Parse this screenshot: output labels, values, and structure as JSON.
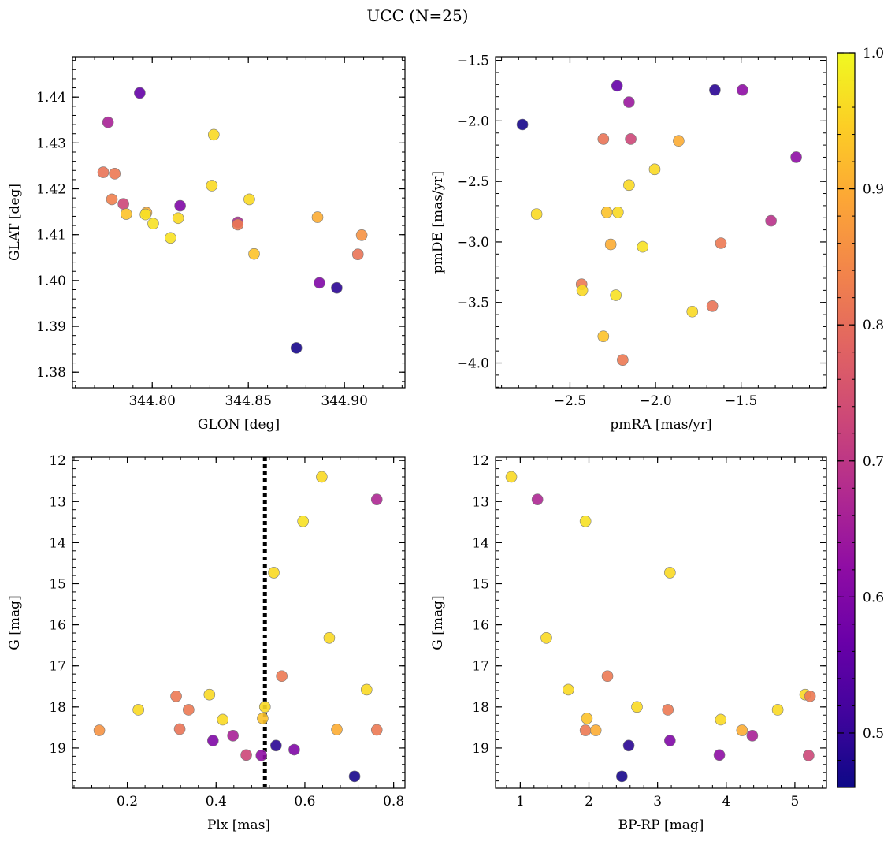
{
  "figure": {
    "title": "UCC (N=25)",
    "colormap": "plasma",
    "colorbar": {
      "range": [
        0.46,
        1.0
      ],
      "ticks": [
        0.5,
        0.6,
        0.7,
        0.8,
        0.9,
        1.0
      ],
      "tick_labels": [
        "0.5",
        "0.6",
        "0.7",
        "0.8",
        "0.9",
        "1.0"
      ]
    }
  },
  "chart_data": [
    {
      "id": "glon-glat",
      "type": "scatter",
      "xlabel": "GLON [deg]",
      "ylabel": "GLAT [deg]",
      "xlim": [
        344.7585,
        344.9315
      ],
      "ylim": [
        1.3766,
        1.4488
      ],
      "y_inverted": false,
      "xticks": [
        344.8,
        344.85,
        344.9
      ],
      "xtick_labels": [
        "344.80",
        "344.85",
        "344.90"
      ],
      "yticks": [
        1.38,
        1.39,
        1.4,
        1.41,
        1.42,
        1.43,
        1.44
      ],
      "ytick_labels": [
        "1.38",
        "1.39",
        "1.40",
        "1.41",
        "1.42",
        "1.43",
        "1.44"
      ],
      "points": [
        {
          "x": 344.7935,
          "y": 1.4409,
          "c": 0.56
        },
        {
          "x": 344.777,
          "y": 1.4345,
          "c": 0.66
        },
        {
          "x": 344.832,
          "y": 1.4318,
          "c": 0.96
        },
        {
          "x": 344.7745,
          "y": 1.4236,
          "c": 0.81
        },
        {
          "x": 344.7805,
          "y": 1.4233,
          "c": 0.82
        },
        {
          "x": 344.831,
          "y": 1.4207,
          "c": 0.96
        },
        {
          "x": 344.779,
          "y": 1.4177,
          "c": 0.83
        },
        {
          "x": 344.8505,
          "y": 1.4177,
          "c": 0.96
        },
        {
          "x": 344.785,
          "y": 1.4167,
          "c": 0.73
        },
        {
          "x": 344.8145,
          "y": 1.4163,
          "c": 0.6
        },
        {
          "x": 344.7865,
          "y": 1.4145,
          "c": 0.93
        },
        {
          "x": 344.797,
          "y": 1.4148,
          "c": 0.9
        },
        {
          "x": 344.7965,
          "y": 1.4144,
          "c": 0.97
        },
        {
          "x": 344.8135,
          "y": 1.4136,
          "c": 0.96
        },
        {
          "x": 344.886,
          "y": 1.4138,
          "c": 0.9
        },
        {
          "x": 344.8445,
          "y": 1.4127,
          "c": 0.67
        },
        {
          "x": 344.8445,
          "y": 1.4122,
          "c": 0.82
        },
        {
          "x": 344.8005,
          "y": 1.4124,
          "c": 0.97
        },
        {
          "x": 344.8095,
          "y": 1.4093,
          "c": 0.97
        },
        {
          "x": 344.909,
          "y": 1.4099,
          "c": 0.86
        },
        {
          "x": 344.853,
          "y": 1.4058,
          "c": 0.93
        },
        {
          "x": 344.907,
          "y": 1.4057,
          "c": 0.81
        },
        {
          "x": 344.887,
          "y": 1.3995,
          "c": 0.6
        },
        {
          "x": 344.896,
          "y": 1.3984,
          "c": 0.49
        },
        {
          "x": 344.875,
          "y": 1.3853,
          "c": 0.47
        }
      ]
    },
    {
      "id": "pmra-pmde",
      "type": "scatter",
      "xlabel": "pmRA [mas/yr]",
      "ylabel": "pmDE [mas/yr]",
      "xlim": [
        -2.935,
        -1.001
      ],
      "ylim": [
        -4.205,
        -1.47
      ],
      "y_inverted": false,
      "xticks": [
        -2.5,
        -2.0,
        -1.5
      ],
      "xtick_labels": [
        "−2.5",
        "−2.0",
        "−1.5"
      ],
      "yticks": [
        -4.0,
        -3.5,
        -3.0,
        -2.5,
        -2.0,
        -1.5
      ],
      "ytick_labels": [
        "−4.0",
        "−3.5",
        "−3.0",
        "−2.5",
        "−2.0",
        "−1.5"
      ],
      "points": [
        {
          "x": -2.225,
          "y": -1.71,
          "c": 0.56
        },
        {
          "x": -1.653,
          "y": -1.745,
          "c": 0.49
        },
        {
          "x": -1.492,
          "y": -1.745,
          "c": 0.62
        },
        {
          "x": -2.155,
          "y": -1.845,
          "c": 0.64
        },
        {
          "x": -2.778,
          "y": -2.03,
          "c": 0.47
        },
        {
          "x": -2.305,
          "y": -2.15,
          "c": 0.81
        },
        {
          "x": -2.145,
          "y": -2.15,
          "c": 0.73
        },
        {
          "x": -1.865,
          "y": -2.165,
          "c": 0.9
        },
        {
          "x": -1.178,
          "y": -2.3,
          "c": 0.62
        },
        {
          "x": -2.005,
          "y": -2.4,
          "c": 0.96
        },
        {
          "x": -2.155,
          "y": -2.53,
          "c": 0.96
        },
        {
          "x": -2.285,
          "y": -2.755,
          "c": 0.93
        },
        {
          "x": -2.22,
          "y": -2.755,
          "c": 0.96
        },
        {
          "x": -2.695,
          "y": -2.77,
          "c": 0.96
        },
        {
          "x": -1.325,
          "y": -2.825,
          "c": 0.69
        },
        {
          "x": -2.262,
          "y": -3.02,
          "c": 0.9
        },
        {
          "x": -1.618,
          "y": -3.01,
          "c": 0.82
        },
        {
          "x": -2.075,
          "y": -3.04,
          "c": 0.97
        },
        {
          "x": -2.432,
          "y": -3.35,
          "c": 0.82
        },
        {
          "x": -2.428,
          "y": -3.4,
          "c": 0.96
        },
        {
          "x": -2.232,
          "y": -3.44,
          "c": 0.97
        },
        {
          "x": -1.668,
          "y": -3.53,
          "c": 0.81
        },
        {
          "x": -1.785,
          "y": -3.575,
          "c": 0.96
        },
        {
          "x": -2.305,
          "y": -3.78,
          "c": 0.93
        },
        {
          "x": -2.192,
          "y": -3.975,
          "c": 0.82
        }
      ]
    },
    {
      "id": "plx-g",
      "type": "scatter",
      "xlabel": "Plx [mas]",
      "ylabel": "G [mag]",
      "xlim": [
        0.0765,
        0.8255
      ],
      "ylim": [
        11.92,
        19.98
      ],
      "y_inverted": true,
      "xticks": [
        0.2,
        0.4,
        0.6,
        0.8
      ],
      "xtick_labels": [
        "0.2",
        "0.4",
        "0.6",
        "0.8"
      ],
      "yticks": [
        12,
        13,
        14,
        15,
        16,
        17,
        18,
        19
      ],
      "ytick_labels": [
        "12",
        "13",
        "14",
        "15",
        "16",
        "17",
        "18",
        "19"
      ],
      "vline": {
        "x": 0.51,
        "style": "dotted"
      },
      "points": [
        {
          "x": 0.638,
          "y": 12.4,
          "c": 0.96
        },
        {
          "x": 0.762,
          "y": 12.95,
          "c": 0.67
        },
        {
          "x": 0.596,
          "y": 13.48,
          "c": 0.97
        },
        {
          "x": 0.53,
          "y": 14.73,
          "c": 0.96
        },
        {
          "x": 0.655,
          "y": 16.32,
          "c": 0.96
        },
        {
          "x": 0.548,
          "y": 17.25,
          "c": 0.82
        },
        {
          "x": 0.739,
          "y": 17.58,
          "c": 0.96
        },
        {
          "x": 0.385,
          "y": 17.7,
          "c": 0.96
        },
        {
          "x": 0.31,
          "y": 17.74,
          "c": 0.82
        },
        {
          "x": 0.225,
          "y": 18.07,
          "c": 0.96
        },
        {
          "x": 0.338,
          "y": 18.07,
          "c": 0.82
        },
        {
          "x": 0.51,
          "y": 18.0,
          "c": 0.96
        },
        {
          "x": 0.505,
          "y": 18.28,
          "c": 0.93
        },
        {
          "x": 0.415,
          "y": 18.31,
          "c": 0.96
        },
        {
          "x": 0.137,
          "y": 18.57,
          "c": 0.86
        },
        {
          "x": 0.318,
          "y": 18.54,
          "c": 0.81
        },
        {
          "x": 0.672,
          "y": 18.55,
          "c": 0.9
        },
        {
          "x": 0.762,
          "y": 18.56,
          "c": 0.82
        },
        {
          "x": 0.438,
          "y": 18.7,
          "c": 0.66
        },
        {
          "x": 0.393,
          "y": 18.82,
          "c": 0.6
        },
        {
          "x": 0.535,
          "y": 18.94,
          "c": 0.49
        },
        {
          "x": 0.576,
          "y": 19.04,
          "c": 0.6
        },
        {
          "x": 0.468,
          "y": 19.17,
          "c": 0.73
        },
        {
          "x": 0.502,
          "y": 19.18,
          "c": 0.62
        },
        {
          "x": 0.712,
          "y": 19.69,
          "c": 0.47
        }
      ]
    },
    {
      "id": "bprp-g",
      "type": "scatter",
      "xlabel": "BP-RP [mag]",
      "ylabel": "G [mag]",
      "xlim": [
        0.64,
        5.46
      ],
      "ylim": [
        11.92,
        19.98
      ],
      "y_inverted": true,
      "xticks": [
        1,
        2,
        3,
        4,
        5
      ],
      "xtick_labels": [
        "1",
        "2",
        "3",
        "4",
        "5"
      ],
      "yticks": [
        12,
        13,
        14,
        15,
        16,
        17,
        18,
        19
      ],
      "ytick_labels": [
        "12",
        "13",
        "14",
        "15",
        "16",
        "17",
        "18",
        "19"
      ],
      "points": [
        {
          "x": 0.87,
          "y": 12.4,
          "c": 0.96
        },
        {
          "x": 1.25,
          "y": 12.95,
          "c": 0.67
        },
        {
          "x": 1.95,
          "y": 13.48,
          "c": 0.97
        },
        {
          "x": 3.18,
          "y": 14.73,
          "c": 0.96
        },
        {
          "x": 1.38,
          "y": 16.32,
          "c": 0.96
        },
        {
          "x": 2.27,
          "y": 17.25,
          "c": 0.82
        },
        {
          "x": 1.7,
          "y": 17.58,
          "c": 0.96
        },
        {
          "x": 5.15,
          "y": 17.7,
          "c": 0.96
        },
        {
          "x": 5.22,
          "y": 17.74,
          "c": 0.82
        },
        {
          "x": 2.7,
          "y": 18.0,
          "c": 0.96
        },
        {
          "x": 3.15,
          "y": 18.07,
          "c": 0.82
        },
        {
          "x": 4.75,
          "y": 18.07,
          "c": 0.96
        },
        {
          "x": 1.97,
          "y": 18.28,
          "c": 0.93
        },
        {
          "x": 3.92,
          "y": 18.31,
          "c": 0.96
        },
        {
          "x": 1.95,
          "y": 18.57,
          "c": 0.82
        },
        {
          "x": 2.1,
          "y": 18.57,
          "c": 0.9
        },
        {
          "x": 4.23,
          "y": 18.57,
          "c": 0.9
        },
        {
          "x": 4.38,
          "y": 18.7,
          "c": 0.66
        },
        {
          "x": 3.18,
          "y": 18.82,
          "c": 0.6
        },
        {
          "x": 2.58,
          "y": 18.94,
          "c": 0.49
        },
        {
          "x": 3.9,
          "y": 19.17,
          "c": 0.62
        },
        {
          "x": 5.2,
          "y": 19.18,
          "c": 0.73
        },
        {
          "x": 2.48,
          "y": 19.69,
          "c": 0.47
        }
      ]
    }
  ]
}
